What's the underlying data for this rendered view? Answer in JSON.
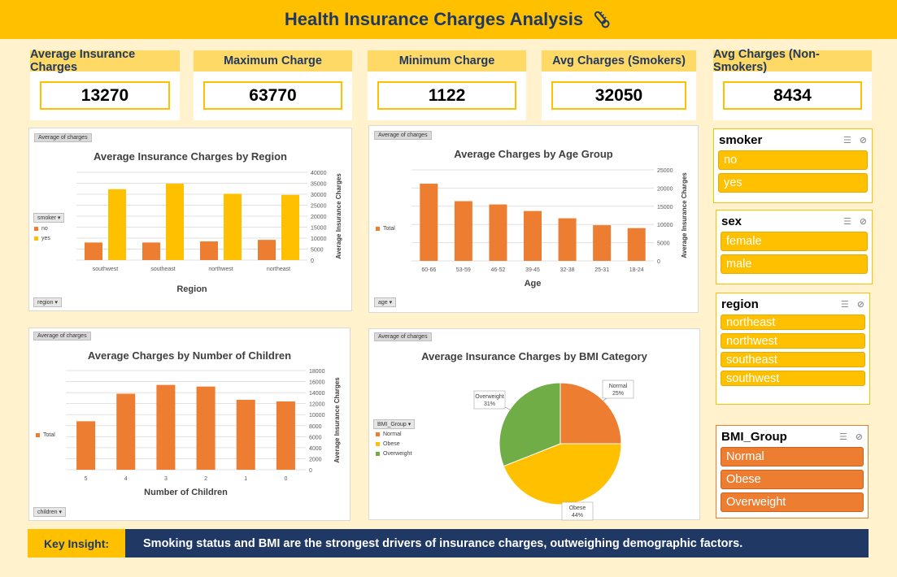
{
  "header": {
    "title": "Health Insurance Charges Analysis",
    "icon": "thermometer-icon"
  },
  "kpis": [
    {
      "label": "Average Insurance Charges",
      "value": "13270"
    },
    {
      "label": "Maximum Charge",
      "value": "63770"
    },
    {
      "label": "Minimum Charge",
      "value": "1122"
    },
    {
      "label": "Avg Charges (Smokers)",
      "value": "32050"
    },
    {
      "label": "Avg Charges (Non-Smokers)",
      "value": "8434"
    }
  ],
  "pivot_tag": "Average of charges",
  "chart_region": {
    "filter": "region",
    "legend_field": "smoker",
    "chart_data": {
      "type": "bar",
      "title": "Average Insurance Charges by Region",
      "xlabel": "Region",
      "ylabel": "Average Insurance Charges",
      "categories": [
        "southwest",
        "southeast",
        "northwest",
        "northeast"
      ],
      "series": [
        {
          "name": "no",
          "color": "#ed7d31",
          "values": [
            8000,
            8000,
            8500,
            9200
          ]
        },
        {
          "name": "yes",
          "color": "#ffc000",
          "values": [
            32300,
            34800,
            30200,
            29700
          ]
        }
      ],
      "ylim": [
        0,
        40000
      ],
      "yticks": [
        "40000",
        "35000",
        "30000",
        "25000",
        "20000",
        "15000",
        "10000",
        "5000",
        "0"
      ],
      "grid": true
    }
  },
  "chart_age": {
    "filter": "age",
    "chart_data": {
      "type": "bar",
      "title": "Average Charges by Age Group",
      "xlabel": "Age",
      "ylabel": "Average Insurance Charges",
      "categories": [
        "60-66",
        "53-59",
        "46-52",
        "39-45",
        "32-38",
        "25-31",
        "18-24"
      ],
      "series": [
        {
          "name": "Total",
          "color": "#ed7d31",
          "values": [
            21200,
            16400,
            15500,
            13700,
            11700,
            9800,
            9000
          ]
        }
      ],
      "ylim": [
        0,
        25000
      ],
      "yticks": [
        "25000",
        "20000",
        "15000",
        "10000",
        "5000",
        "0"
      ],
      "grid": true
    }
  },
  "chart_children": {
    "filter": "children",
    "chart_data": {
      "type": "bar",
      "title": "Average Charges by Number of Children",
      "xlabel": "Number of Children",
      "ylabel": "Average Insurance Charges",
      "categories": [
        "5",
        "4",
        "3",
        "2",
        "1",
        "0"
      ],
      "series": [
        {
          "name": "Total",
          "color": "#ed7d31",
          "values": [
            8800,
            13800,
            15400,
            15100,
            12700,
            12400
          ]
        }
      ],
      "ylim": [
        0,
        18000
      ],
      "yticks": [
        "18000",
        "16000",
        "14000",
        "12000",
        "10000",
        "8000",
        "6000",
        "4000",
        "2000",
        "0"
      ],
      "grid": true
    }
  },
  "chart_bmi": {
    "legend_field": "BMI_Group",
    "chart_data": {
      "type": "pie",
      "title": "Average Insurance Charges by BMI Category",
      "slices": [
        {
          "name": "Normal",
          "percent": 25,
          "label": "25%",
          "color": "#ed7d31"
        },
        {
          "name": "Obese",
          "percent": 44,
          "label": "44%",
          "color": "#ffc000"
        },
        {
          "name": "Overweight",
          "percent": 31,
          "label": "31%",
          "color": "#70ad47"
        }
      ]
    }
  },
  "slicers": {
    "smoker": {
      "title": "smoker",
      "items": [
        "no",
        "yes"
      ]
    },
    "sex": {
      "title": "sex",
      "items": [
        "female",
        "male"
      ]
    },
    "region": {
      "title": "region",
      "items": [
        "northeast",
        "northwest",
        "southeast",
        "southwest"
      ]
    },
    "bmi": {
      "title": "BMI_Group",
      "items": [
        "Normal",
        "Obese",
        "Overweight"
      ]
    }
  },
  "insight": {
    "label": "Key Insight:",
    "text": "Smoking status and BMI are the strongest drivers of insurance charges, outweighing demographic factors."
  }
}
